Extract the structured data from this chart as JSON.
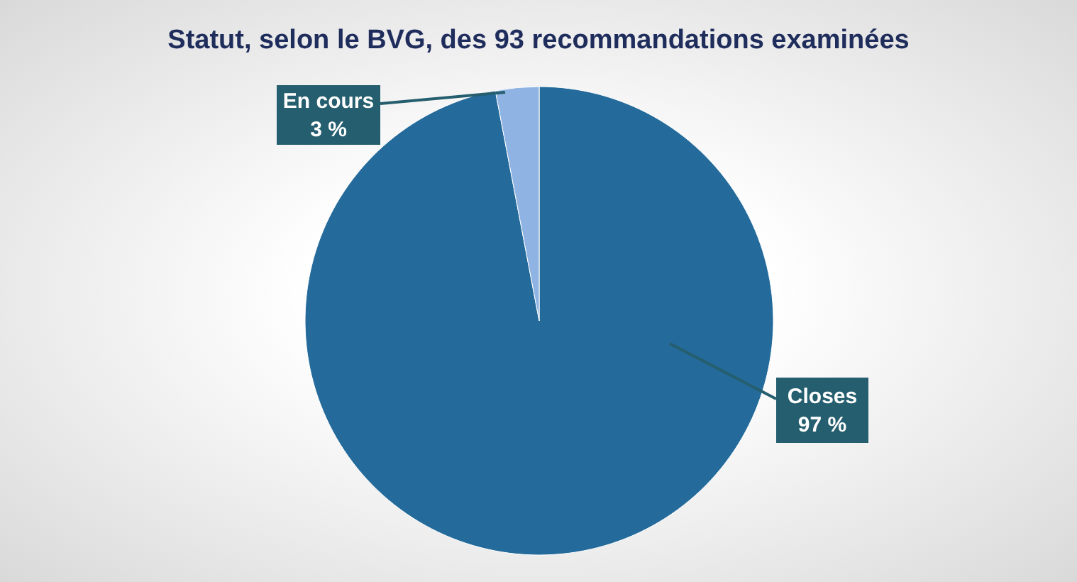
{
  "chart_data": {
    "type": "pie",
    "title": "Statut, selon le BVG, des 93 recommandations examinées",
    "categories": [
      "Closes",
      "En cours"
    ],
    "values": [
      97,
      3
    ],
    "colors": [
      "#246b9b",
      "#8fb4e3"
    ],
    "value_labels": [
      "97 %",
      "3 %"
    ]
  }
}
